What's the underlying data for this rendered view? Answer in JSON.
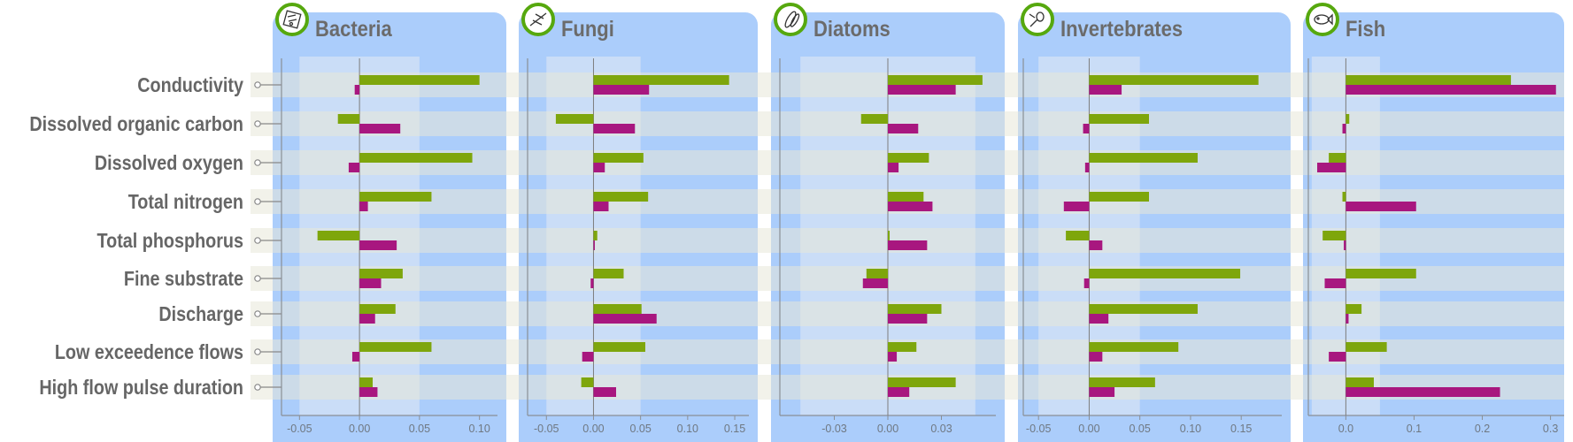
{
  "chart_data": {
    "type": "bar",
    "orientation": "horizontal",
    "categories": [
      "Conductivity",
      "Dissolved organic carbon",
      "Dissolved oxygen",
      "Total nitrogen",
      "Total phosphorus",
      "Fine substrate",
      "Discharge",
      "Low exceedence flows",
      "High flow pulse duration"
    ],
    "colors": {
      "series_green": "#7ea60c",
      "series_magenta": "#a8177f",
      "panel_bg": "#abcdfb",
      "inner_band": "#cfdff6",
      "row_band": "#e8e8d8",
      "label_text": "#666666",
      "icon_ring": "#56a80e"
    },
    "grid": false,
    "legend": "none",
    "panels": [
      {
        "title": "Bacteria",
        "icon": "bacteria-icon",
        "xlim": [
          -0.065,
          0.115
        ],
        "ticks": [
          -0.05,
          0.0,
          0.05,
          0.1
        ],
        "tick_labels": [
          "-0.05",
          "0.00",
          "0.05",
          "0.10"
        ],
        "band": [
          -0.05,
          0.05
        ],
        "series": [
          {
            "values": [
              0.1,
              -0.018,
              0.094,
              0.06,
              -0.035,
              0.036,
              0.03,
              0.06,
              0.011
            ]
          },
          {
            "values": [
              -0.004,
              0.034,
              -0.009,
              0.007,
              0.031,
              0.018,
              0.013,
              -0.006,
              0.015
            ]
          }
        ]
      },
      {
        "title": "Fungi",
        "icon": "fungi-icon",
        "xlim": [
          -0.07,
          0.165
        ],
        "ticks": [
          -0.05,
          0.0,
          0.05,
          0.1,
          0.15
        ],
        "tick_labels": [
          "-0.05",
          "0.00",
          "0.05",
          "0.10",
          "0.15"
        ],
        "band": [
          -0.05,
          0.05
        ],
        "series": [
          {
            "values": [
              0.144,
              -0.04,
              0.053,
              0.058,
              0.004,
              0.032,
              0.051,
              0.055,
              -0.013
            ]
          },
          {
            "values": [
              0.059,
              0.044,
              0.012,
              0.016,
              0.0,
              -0.003,
              0.067,
              -0.012,
              0.024
            ]
          }
        ]
      },
      {
        "title": "Diatoms",
        "icon": "diatoms-icon",
        "xlim": [
          -0.0605,
          0.0605
        ],
        "ticks": [
          -0.03,
          0.0,
          0.03
        ],
        "tick_labels": [
          "-0.03",
          "0.00",
          "0.03"
        ],
        "band": [
          -0.049,
          0.049
        ],
        "series": [
          {
            "values": [
              0.053,
              -0.015,
              0.023,
              0.02,
              0.001,
              -0.012,
              0.03,
              0.016,
              0.038
            ]
          },
          {
            "values": [
              0.038,
              0.017,
              0.006,
              0.025,
              0.022,
              -0.014,
              0.022,
              0.005,
              0.012
            ]
          }
        ]
      },
      {
        "title": "Invertebrates",
        "icon": "invertebrates-icon",
        "xlim": [
          -0.065,
          0.19
        ],
        "ticks": [
          -0.05,
          0.0,
          0.05,
          0.1,
          0.15
        ],
        "tick_labels": [
          "-0.05",
          "0.00",
          "0.05",
          "0.10",
          "0.15"
        ],
        "band": [
          -0.05,
          0.05
        ],
        "series": [
          {
            "values": [
              0.167,
              0.059,
              0.107,
              0.059,
              -0.023,
              0.149,
              0.107,
              0.088,
              0.065
            ]
          },
          {
            "values": [
              0.032,
              -0.006,
              -0.004,
              -0.025,
              0.013,
              -0.005,
              0.019,
              0.013,
              0.025
            ]
          }
        ]
      },
      {
        "title": "Fish",
        "icon": "fish-icon",
        "xlim": [
          -0.055,
          0.32
        ],
        "ticks": [
          0.0,
          0.1,
          0.2,
          0.3
        ],
        "tick_labels": [
          "0.0",
          "0.1",
          "0.2",
          "0.3"
        ],
        "band": [
          -0.05,
          0.05
        ],
        "series": [
          {
            "values": [
              0.242,
              0.005,
              -0.025,
              -0.005,
              -0.034,
              0.103,
              0.023,
              0.06,
              0.041
            ]
          },
          {
            "values": [
              0.308,
              -0.005,
              -0.042,
              0.103,
              -0.003,
              -0.031,
              0.004,
              -0.025,
              0.226
            ]
          }
        ]
      }
    ]
  }
}
